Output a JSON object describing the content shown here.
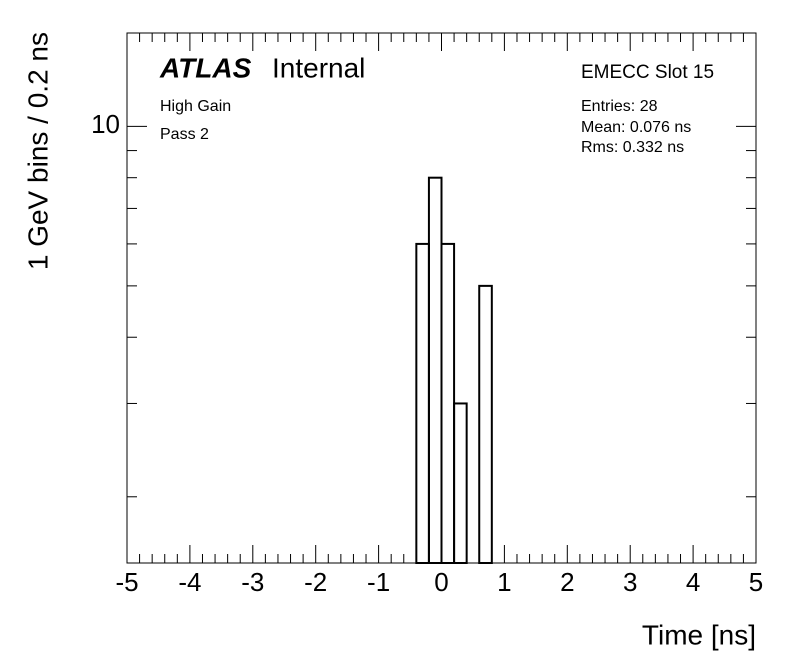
{
  "chart_data": {
    "type": "histogram",
    "bins": [
      -0.4,
      -0.2,
      0,
      0.2,
      0.4,
      0.6,
      0.8
    ],
    "counts": [
      6,
      8,
      6,
      3,
      0,
      5
    ],
    "color": "#000000",
    "xlabel": "Time [ns]",
    "ylabel": "1 GeV bins / 0.2 ns",
    "xlim": [
      -5,
      5
    ],
    "xticks": [
      -5,
      -4,
      -3,
      -2,
      -1,
      0,
      1,
      2,
      3,
      4,
      5
    ],
    "ylim": [
      1.5,
      15
    ],
    "yticks": [
      10
    ],
    "yminorticks": [
      2,
      3,
      4,
      5,
      6,
      7,
      8,
      9
    ],
    "ylog": true,
    "annotations": {
      "experiment": "ATLAS",
      "status": "Internal",
      "gain": "High Gain",
      "pass": "Pass 2",
      "slot": "EMECC Slot 15",
      "entries": "Entries: 28",
      "mean": "Mean: 0.076 ns",
      "rms": "Rms: 0.332 ns"
    }
  }
}
